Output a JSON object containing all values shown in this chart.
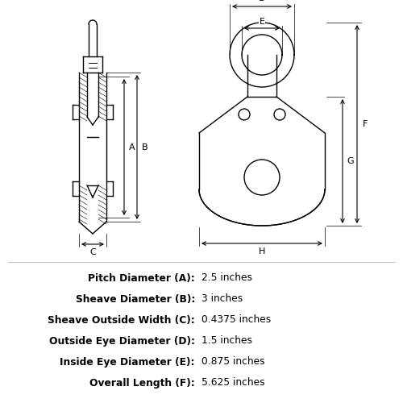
{
  "bg_color": "#ffffff",
  "line_color": "#000000",
  "specs": [
    {
      "label": "Pitch Diameter (A):",
      "value": "2.5 inches"
    },
    {
      "label": "Sheave Diameter (B):",
      "value": "3 inches"
    },
    {
      "label": "Sheave Outside Width (C):",
      "value": "0.4375 inches"
    },
    {
      "label": "Outside Eye Diameter (D):",
      "value": "1.5 inches"
    },
    {
      "label": "Inside Eye Diameter (E):",
      "value": "0.875 inches"
    },
    {
      "label": "Overall Length (F):",
      "value": "5.625 inches"
    }
  ]
}
